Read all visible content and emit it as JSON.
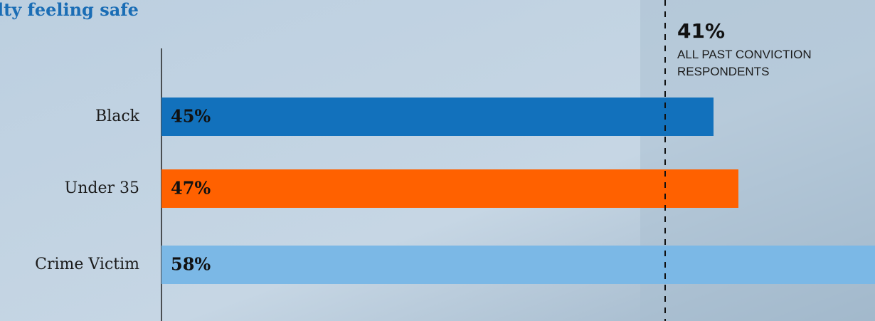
{
  "chart_data": {
    "type": "bar",
    "orientation": "horizontal",
    "title": "lty feeling safe",
    "categories": [
      "Black",
      "Under 35",
      "Crime Victim"
    ],
    "values": [
      45,
      47,
      58
    ],
    "value_labels": [
      "45%",
      "47%",
      "58%"
    ],
    "colors": [
      "#1271bc",
      "#ff6100",
      "#7bb8e6"
    ],
    "reference": {
      "value": 41,
      "label": "41%",
      "text": [
        "ALL PAST CONVICTION",
        "RESPONDENTS"
      ]
    }
  }
}
